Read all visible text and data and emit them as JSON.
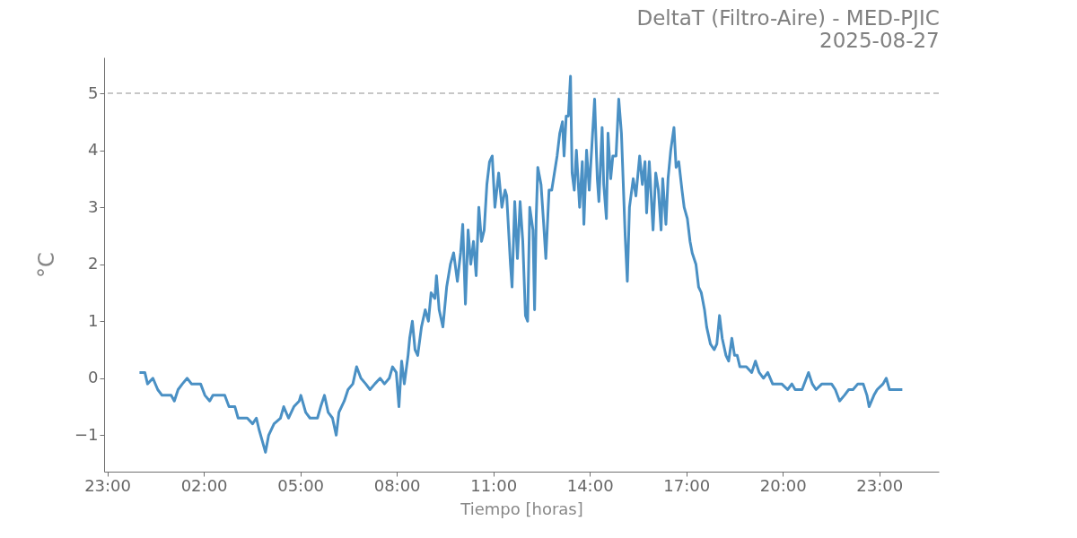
{
  "chart_data": {
    "type": "line",
    "title": "DeltaT (Filtro-Aire) - MED-PJIC",
    "subtitle": "2025-08-27",
    "xlabel": "Tiempo [horas]",
    "ylabel": "°C",
    "x": [
      "2025-08-27T00:00",
      "2025-08-27T00:10",
      "2025-08-27T00:15",
      "2025-08-27T00:25",
      "2025-08-27T00:34",
      "2025-08-27T00:42",
      "2025-08-27T00:59",
      "2025-08-27T01:05",
      "2025-08-27T01:12",
      "2025-08-27T01:20",
      "2025-08-27T01:29",
      "2025-08-27T01:37",
      "2025-08-27T01:54",
      "2025-08-27T02:02",
      "2025-08-27T02:11",
      "2025-08-27T02:17",
      "2025-08-27T02:39",
      "2025-08-27T02:47",
      "2025-08-27T02:58",
      "2025-08-27T03:04",
      "2025-08-27T03:21",
      "2025-08-27T03:31",
      "2025-08-27T03:38",
      "2025-08-27T03:43",
      "2025-08-27T03:49",
      "2025-08-27T03:55",
      "2025-08-27T04:01",
      "2025-08-27T04:11",
      "2025-08-27T04:23",
      "2025-08-27T04:29",
      "2025-08-27T04:38",
      "2025-08-27T04:48",
      "2025-08-27T04:58",
      "2025-08-27T05:01",
      "2025-08-27T05:10",
      "2025-08-27T05:18",
      "2025-08-27T05:32",
      "2025-08-27T05:38",
      "2025-08-27T05:45",
      "2025-08-27T05:52",
      "2025-08-27T06:00",
      "2025-08-27T06:07",
      "2025-08-27T06:12",
      "2025-08-27T06:22",
      "2025-08-27T06:29",
      "2025-08-27T06:38",
      "2025-08-27T06:45",
      "2025-08-27T06:53",
      "2025-08-27T07:02",
      "2025-08-27T07:10",
      "2025-08-27T07:19",
      "2025-08-27T07:29",
      "2025-08-27T07:37",
      "2025-08-27T07:46",
      "2025-08-27T07:52",
      "2025-08-27T07:59",
      "2025-08-27T08:04",
      "2025-08-27T08:09",
      "2025-08-27T08:14",
      "2025-08-27T08:21",
      "2025-08-27T08:24",
      "2025-08-27T08:29",
      "2025-08-27T08:34",
      "2025-08-27T08:39",
      "2025-08-27T08:46",
      "2025-08-27T08:53",
      "2025-08-27T08:59",
      "2025-08-27T09:04",
      "2025-08-27T09:11",
      "2025-08-27T09:14",
      "2025-08-27T09:19",
      "2025-08-27T09:26",
      "2025-08-27T09:33",
      "2025-08-27T09:40",
      "2025-08-27T09:46",
      "2025-08-27T09:53",
      "2025-08-27T09:59",
      "2025-08-27T10:03",
      "2025-08-27T10:08",
      "2025-08-27T10:13",
      "2025-08-27T10:18",
      "2025-08-27T10:23",
      "2025-08-27T10:28",
      "2025-08-27T10:33",
      "2025-08-27T10:38",
      "2025-08-27T10:43",
      "2025-08-27T10:48",
      "2025-08-27T10:53",
      "2025-08-27T10:58",
      "2025-08-27T11:03",
      "2025-08-27T11:10",
      "2025-08-27T11:16",
      "2025-08-27T11:22",
      "2025-08-27T11:25",
      "2025-08-27T11:32",
      "2025-08-27T11:35",
      "2025-08-27T11:40",
      "2025-08-27T11:45",
      "2025-08-27T11:50",
      "2025-08-27T11:55",
      "2025-08-27T12:00",
      "2025-08-27T12:04",
      "2025-08-27T12:08",
      "2025-08-27T12:14",
      "2025-08-27T12:17",
      "2025-08-27T12:20",
      "2025-08-27T12:23",
      "2025-08-27T12:29",
      "2025-08-27T12:34",
      "2025-08-27T12:38",
      "2025-08-27T12:44",
      "2025-08-27T12:49",
      "2025-08-27T12:54",
      "2025-08-27T12:59",
      "2025-08-27T13:04",
      "2025-08-27T13:09",
      "2025-08-27T13:12",
      "2025-08-27T13:16",
      "2025-08-27T13:20",
      "2025-08-27T13:24",
      "2025-08-27T13:27",
      "2025-08-27T13:31",
      "2025-08-27T13:35",
      "2025-08-27T13:41",
      "2025-08-27T13:46",
      "2025-08-27T13:49",
      "2025-08-27T13:54",
      "2025-08-27T13:59",
      "2025-08-27T14:04",
      "2025-08-27T14:09",
      "2025-08-27T14:14",
      "2025-08-27T14:17",
      "2025-08-27T14:23",
      "2025-08-27T14:26",
      "2025-08-27T14:31",
      "2025-08-27T14:34",
      "2025-08-27T14:39",
      "2025-08-27T14:43",
      "2025-08-27T14:49",
      "2025-08-27T14:54",
      "2025-08-27T14:59",
      "2025-08-27T15:06",
      "2025-08-27T15:10",
      "2025-08-27T15:14",
      "2025-08-27T15:21",
      "2025-08-27T15:26",
      "2025-08-27T15:33",
      "2025-08-27T15:38",
      "2025-08-27T15:43",
      "2025-08-27T15:46",
      "2025-08-27T15:51",
      "2025-08-27T15:58",
      "2025-08-27T16:03",
      "2025-08-27T16:08",
      "2025-08-27T16:13",
      "2025-08-27T16:16",
      "2025-08-27T16:22",
      "2025-08-27T16:26",
      "2025-08-27T16:31",
      "2025-08-27T16:37",
      "2025-08-27T16:41",
      "2025-08-27T16:46",
      "2025-08-27T16:52",
      "2025-08-27T16:56",
      "2025-08-27T17:02",
      "2025-08-27T17:07",
      "2025-08-27T17:11",
      "2025-08-27T17:18",
      "2025-08-27T17:23",
      "2025-08-27T17:28",
      "2025-08-27T17:34",
      "2025-08-27T17:38",
      "2025-08-27T17:45",
      "2025-08-27T17:52",
      "2025-08-27T17:57",
      "2025-08-27T18:02",
      "2025-08-27T18:07",
      "2025-08-27T18:14",
      "2025-08-27T18:19",
      "2025-08-27T18:25",
      "2025-08-27T18:30",
      "2025-08-27T18:35",
      "2025-08-27T18:40",
      "2025-08-27T18:52",
      "2025-08-27T19:02",
      "2025-08-27T19:09",
      "2025-08-27T19:16",
      "2025-08-27T19:24",
      "2025-08-27T19:32",
      "2025-08-27T19:41",
      "2025-08-27T19:58",
      "2025-08-27T20:09",
      "2025-08-27T20:17",
      "2025-08-27T20:23",
      "2025-08-27T20:36",
      "2025-08-27T20:48",
      "2025-08-27T20:55",
      "2025-08-27T21:02",
      "2025-08-27T21:13",
      "2025-08-27T21:21",
      "2025-08-27T21:31",
      "2025-08-27T21:38",
      "2025-08-27T21:46",
      "2025-08-27T21:55",
      "2025-08-27T22:03",
      "2025-08-27T22:11",
      "2025-08-27T22:20",
      "2025-08-27T22:30",
      "2025-08-27T22:37",
      "2025-08-27T22:41",
      "2025-08-27T22:50",
      "2025-08-27T22:56",
      "2025-08-27T23:07",
      "2025-08-27T23:13",
      "2025-08-27T23:19",
      "2025-08-27T23:26",
      "2025-08-27T23:43"
    ],
    "series": [
      {
        "color": "#4a90c4",
        "values": [
          0.1,
          0.1,
          -0.1,
          0.0,
          -0.2,
          -0.3,
          -0.3,
          -0.4,
          -0.2,
          -0.1,
          0.0,
          -0.1,
          -0.1,
          -0.3,
          -0.4,
          -0.3,
          -0.3,
          -0.5,
          -0.5,
          -0.7,
          -0.7,
          -0.8,
          -0.7,
          -0.9,
          -1.1,
          -1.3,
          -1.0,
          -0.8,
          -0.7,
          -0.5,
          -0.7,
          -0.5,
          -0.4,
          -0.3,
          -0.6,
          -0.7,
          -0.7,
          -0.5,
          -0.3,
          -0.6,
          -0.7,
          -1.0,
          -0.6,
          -0.4,
          -0.2,
          -0.1,
          0.2,
          0.0,
          -0.1,
          -0.2,
          -0.1,
          0.0,
          -0.1,
          0.0,
          0.2,
          0.1,
          -0.5,
          0.3,
          -0.1,
          0.4,
          0.7,
          1.0,
          0.5,
          0.4,
          0.9,
          1.2,
          1.0,
          1.5,
          1.4,
          1.8,
          1.2,
          0.9,
          1.6,
          2.0,
          2.2,
          1.7,
          2.2,
          2.7,
          1.3,
          2.6,
          2.0,
          2.4,
          1.8,
          3.0,
          2.4,
          2.6,
          3.4,
          3.8,
          3.9,
          3.0,
          3.6,
          3.0,
          3.3,
          3.2,
          2.0,
          1.6,
          3.1,
          2.1,
          3.1,
          2.4,
          1.1,
          1.0,
          3.0,
          2.6,
          1.2,
          2.8,
          3.7,
          3.4,
          2.7,
          2.1,
          3.3,
          3.3,
          3.6,
          3.9,
          4.3,
          4.5,
          3.9,
          4.6,
          4.6,
          5.3,
          3.6,
          3.3,
          4.0,
          3.0,
          3.8,
          2.7,
          4.0,
          3.3,
          4.1,
          4.9,
          3.5,
          3.1,
          4.4,
          3.4,
          2.8,
          4.3,
          3.5,
          3.9,
          3.9,
          4.9,
          4.3,
          2.5,
          1.7,
          3.0,
          3.5,
          3.2,
          3.9,
          3.4,
          3.8,
          2.9,
          3.8,
          2.6,
          3.6,
          3.3,
          2.6,
          3.5,
          2.7,
          3.5,
          4.0,
          4.4,
          3.7,
          3.8,
          3.3,
          3.0,
          2.8,
          2.4,
          2.2,
          2.0,
          1.6,
          1.5,
          1.2,
          0.9,
          0.6,
          0.5,
          0.6,
          1.1,
          0.7,
          0.4,
          0.3,
          0.7,
          0.4,
          0.4,
          0.2,
          0.2,
          0.1,
          0.3,
          0.1,
          0.0,
          0.1,
          -0.1,
          -0.1,
          -0.2,
          -0.1,
          -0.2,
          -0.2,
          0.1,
          -0.1,
          -0.2,
          -0.1,
          -0.1,
          -0.1,
          -0.2,
          -0.4,
          -0.3,
          -0.2,
          -0.2,
          -0.1,
          -0.1,
          -0.3,
          -0.5,
          -0.3,
          -0.2,
          -0.1,
          0.0,
          -0.2,
          -0.2,
          -0.2
        ]
      }
    ],
    "xlim": [
      "2025-08-26T22:54",
      "2025-08-28T00:51"
    ],
    "xticks": [
      {
        "value": "2025-08-26T23:00",
        "label": "23:00"
      },
      {
        "value": "2025-08-27T02:00",
        "label": "02:00"
      },
      {
        "value": "2025-08-27T05:00",
        "label": "05:00"
      },
      {
        "value": "2025-08-27T08:00",
        "label": "08:00"
      },
      {
        "value": "2025-08-27T11:00",
        "label": "11:00"
      },
      {
        "value": "2025-08-27T14:00",
        "label": "14:00"
      },
      {
        "value": "2025-08-27T17:00",
        "label": "17:00"
      },
      {
        "value": "2025-08-27T20:00",
        "label": "20:00"
      },
      {
        "value": "2025-08-27T23:00",
        "label": "23:00"
      }
    ],
    "ylim": [
      -1.64,
      5.63
    ],
    "yticks": [
      {
        "value": -1,
        "label": "−1"
      },
      0,
      1,
      2,
      3,
      4,
      5
    ],
    "ref_lines": [
      {
        "axis": "y",
        "value": 5,
        "color": "#b5b5b5",
        "line_style": "dashed"
      }
    ],
    "grid": false,
    "marker": "none",
    "line_style": "solid"
  }
}
